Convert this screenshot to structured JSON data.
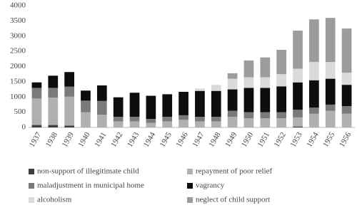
{
  "chart_data": {
    "type": "stacked-bar",
    "categories": [
      "1937",
      "1938",
      "1939",
      "1940",
      "1941",
      "1942",
      "1943",
      "1944",
      "1945",
      "1946",
      "1947",
      "1948",
      "1949",
      "1950",
      "1951",
      "1952",
      "1953",
      "1954",
      "1955",
      "1956"
    ],
    "series": [
      {
        "name": "non-support of illegitimate child",
        "color": "#3f3f3f",
        "values": [
          80,
          80,
          60,
          0,
          0,
          0,
          0,
          0,
          0,
          0,
          0,
          0,
          0,
          0,
          0,
          0,
          30,
          0,
          0,
          0
        ]
      },
      {
        "name": "repayment of poor relief",
        "color": "#b0b0b0",
        "values": [
          870,
          900,
          950,
          500,
          420,
          200,
          200,
          150,
          200,
          250,
          200,
          200,
          350,
          300,
          300,
          300,
          300,
          450,
          550,
          450
        ]
      },
      {
        "name": "maladjustment in municipal home",
        "color": "#7a7a7a",
        "values": [
          350,
          320,
          330,
          380,
          450,
          150,
          150,
          130,
          150,
          150,
          150,
          150,
          200,
          200,
          200,
          200,
          250,
          200,
          200,
          250
        ]
      },
      {
        "name": "vagrancy",
        "color": "#0d0d0d",
        "values": [
          180,
          400,
          480,
          330,
          510,
          640,
          790,
          760,
          740,
          770,
          850,
          850,
          700,
          800,
          800,
          850,
          900,
          900,
          850,
          700
        ]
      },
      {
        "name": "alcoholism",
        "color": "#dadada",
        "values": [
          0,
          0,
          0,
          0,
          0,
          0,
          0,
          0,
          0,
          0,
          80,
          200,
          350,
          350,
          350,
          400,
          450,
          600,
          550,
          400
        ]
      },
      {
        "name": "neglect of child support",
        "color": "#9c9c9c",
        "values": [
          0,
          0,
          0,
          0,
          0,
          0,
          0,
          0,
          0,
          0,
          0,
          0,
          180,
          550,
          650,
          800,
          1250,
          1400,
          1450,
          1450
        ]
      }
    ],
    "ylim": [
      0,
      4000
    ],
    "yticks": [
      0,
      500,
      1000,
      1500,
      2000,
      2500,
      3000,
      3500,
      4000
    ],
    "grid": false
  }
}
